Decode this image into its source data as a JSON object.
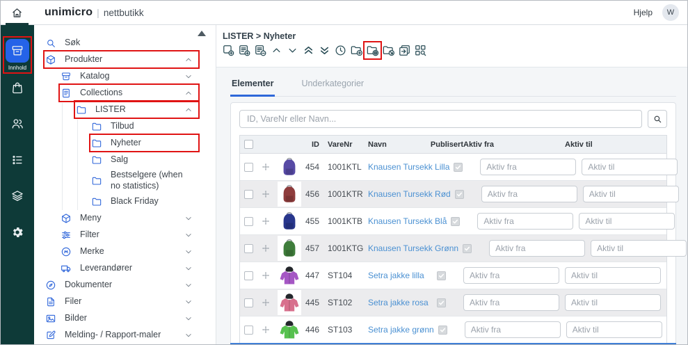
{
  "header": {
    "home_icon": "home",
    "brand": "unimicro",
    "divider": "|",
    "brand_suffix": "nettbutikk",
    "help_label": "Hjelp",
    "avatar_initial": "W"
  },
  "rail": {
    "items": [
      {
        "icon": "archive-box",
        "label": "Innhold",
        "active": true,
        "highlighted": true
      },
      {
        "icon": "shopping-bag"
      },
      {
        "icon": "users"
      },
      {
        "icon": "list"
      },
      {
        "icon": "layers"
      },
      {
        "icon": "gear"
      }
    ]
  },
  "sidebar": {
    "collapse_icon": "triangle-up",
    "items": [
      {
        "label": "Søk",
        "icon": "search",
        "level": 0
      },
      {
        "label": "Produkter",
        "icon": "package",
        "level": 0,
        "chevron": "up",
        "highlighted": true
      },
      {
        "label": "Katalog",
        "icon": "archive-box",
        "level": 1,
        "chevron": "down"
      },
      {
        "label": "Collections",
        "icon": "document",
        "level": 1,
        "chevron": "up",
        "highlighted": true
      },
      {
        "label": "LISTER",
        "icon": "folder",
        "level": 2,
        "chevron": "up",
        "highlighted": true
      },
      {
        "label": "Tilbud",
        "icon": "folder",
        "level": 3
      },
      {
        "label": "Nyheter",
        "icon": "folder",
        "level": 3,
        "highlighted": true
      },
      {
        "label": "Salg",
        "icon": "folder",
        "level": 3
      },
      {
        "label": "Bestselgere (when no statistics)",
        "icon": "folder",
        "level": 3
      },
      {
        "label": "Black Friday",
        "icon": "folder",
        "level": 3
      },
      {
        "label": "Meny",
        "icon": "package",
        "level": 1,
        "chevron": "down"
      },
      {
        "label": "Filter",
        "icon": "filter",
        "level": 1,
        "chevron": "down"
      },
      {
        "label": "Merke",
        "icon": "badge",
        "level": 1,
        "chevron": "down"
      },
      {
        "label": "Leverandører",
        "icon": "truck",
        "level": 1,
        "chevron": "down"
      },
      {
        "label": "Dokumenter",
        "icon": "compass",
        "level": 0,
        "chevron": "down"
      },
      {
        "label": "Filer",
        "icon": "file",
        "level": 0,
        "chevron": "down"
      },
      {
        "label": "Bilder",
        "icon": "image",
        "level": 0,
        "chevron": "down"
      },
      {
        "label": "Melding- / Rapport-maler",
        "icon": "compose",
        "level": 0,
        "chevron": "down"
      }
    ]
  },
  "main": {
    "breadcrumb": "LISTER > Nyheter",
    "toolbar": [
      {
        "icon": "add-card"
      },
      {
        "icon": "add-list-item"
      },
      {
        "icon": "remove-list-item"
      },
      {
        "icon": "move-up"
      },
      {
        "icon": "move-down"
      },
      {
        "icon": "move-top"
      },
      {
        "icon": "move-bottom"
      },
      {
        "icon": "history"
      },
      {
        "icon": "folder-add"
      },
      {
        "icon": "folder-settings",
        "highlighted": true
      },
      {
        "icon": "folder-move"
      },
      {
        "icon": "folder-copy"
      },
      {
        "icon": "grid-search"
      }
    ],
    "tabs": [
      {
        "label": "Elementer",
        "active": true
      },
      {
        "label": "Underkategorier",
        "active": false
      }
    ],
    "search": {
      "placeholder": "ID, VareNr eller Navn...",
      "button_icon": "search"
    },
    "table": {
      "headers": {
        "id": "ID",
        "varenr": "VareNr",
        "navn": "Navn",
        "publisert": "Publisert",
        "aktiv_fra": "Aktiv fra",
        "aktiv_til": "Aktiv til"
      },
      "aktiv_fra_placeholder": "Aktiv fra",
      "aktiv_til_placeholder": "Aktiv til",
      "rows": [
        {
          "id": "454",
          "varenr": "1001KTL",
          "navn": "Knausen Tursekk Lilla",
          "publisert": true,
          "image": "backpack",
          "image_color": "#574aa5"
        },
        {
          "id": "456",
          "varenr": "1001KTR",
          "navn": "Knausen Tursekk Rød",
          "publisert": true,
          "image": "backpack",
          "image_color": "#8e3c3c"
        },
        {
          "id": "455",
          "varenr": "1001KTB",
          "navn": "Knausen Tursekk Blå",
          "publisert": true,
          "image": "backpack",
          "image_color": "#28368c"
        },
        {
          "id": "457",
          "varenr": "1001KTG",
          "navn": "Knausen Tursekk Grønn",
          "publisert": true,
          "image": "backpack",
          "image_color": "#3f7d3b"
        },
        {
          "id": "447",
          "varenr": "ST104",
          "navn": "Setra jakke lilla",
          "publisert": true,
          "image": "jacket",
          "image_color": "#a557c4"
        },
        {
          "id": "445",
          "varenr": "ST102",
          "navn": "Setra jakke rosa",
          "publisert": true,
          "image": "jacket",
          "image_color": "#d8708d"
        },
        {
          "id": "446",
          "varenr": "ST103",
          "navn": "Setra jakke grønn",
          "publisert": true,
          "image": "jacket",
          "image_color": "#57c14f"
        }
      ]
    }
  },
  "colors": {
    "accent_blue": "#2563e8",
    "link_blue": "#4a90d2",
    "rail_background": "#0e3a38",
    "callout_red": "#e01414",
    "tab_active_blue": "#2e68d9"
  }
}
